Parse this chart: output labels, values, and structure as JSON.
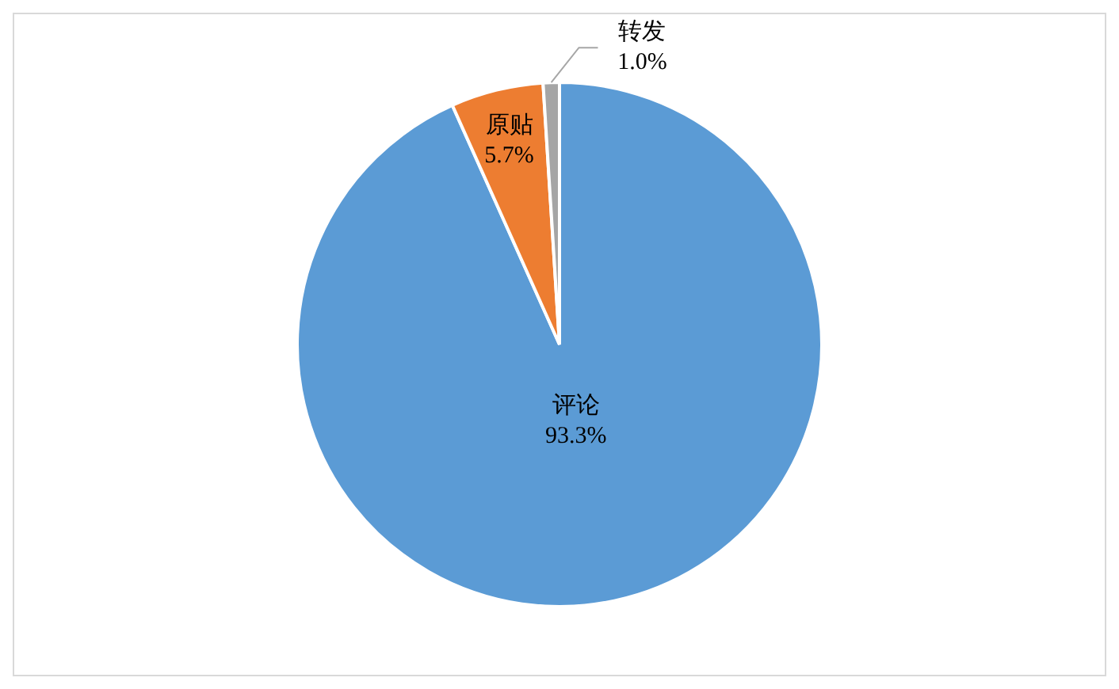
{
  "chart_data": {
    "type": "pie",
    "categories": [
      "评论",
      "原贴",
      "转发"
    ],
    "values": [
      93.3,
      5.7,
      1.0
    ],
    "value_labels": [
      "93.3%",
      "5.7%",
      "1.0%"
    ],
    "colors": [
      "#5b9bd5",
      "#ed7d31",
      "#a5a5a5"
    ],
    "legend": false
  }
}
